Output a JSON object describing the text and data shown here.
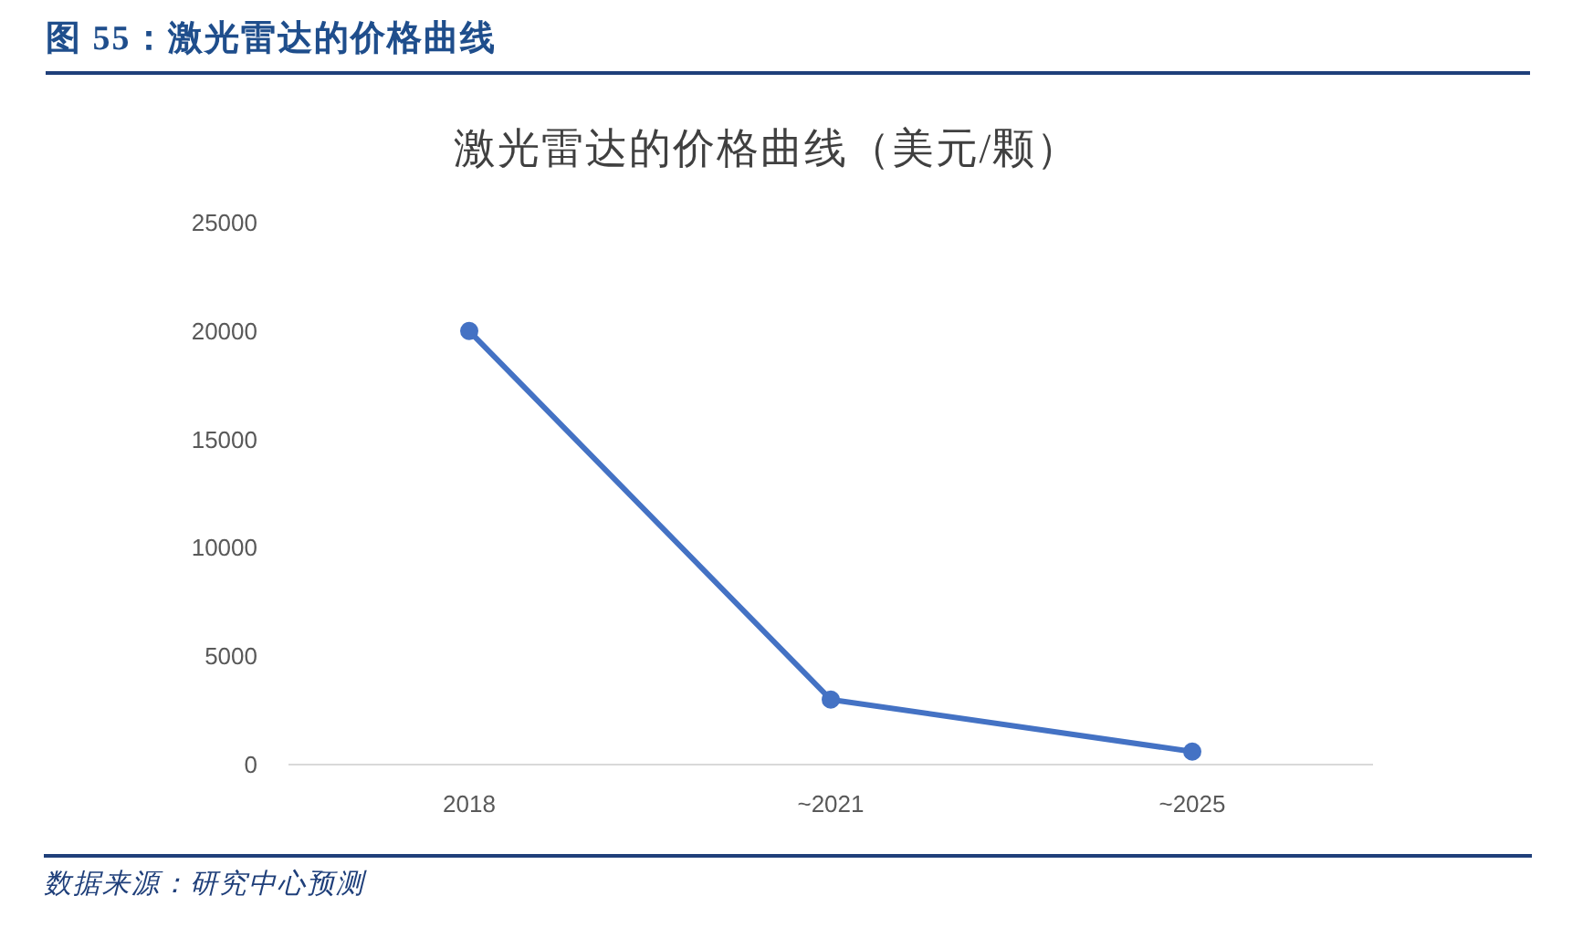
{
  "chart_data": {
    "type": "line",
    "title": "图 55：激光雷达的价格曲线",
    "subtitle": "激光雷达的价格曲线（美元/颗）",
    "categories": [
      "2018",
      "~2021",
      "~2025"
    ],
    "series": [
      {
        "color": "#4472c4",
        "values": [
          20000,
          3000,
          600
        ]
      }
    ],
    "ylim": [
      0,
      25000
    ],
    "yticks": [
      0,
      5000,
      10000,
      15000,
      20000,
      25000
    ],
    "marker": "circle",
    "line_style": "solid",
    "annotations": [
      "数据来源：研究中心预测"
    ]
  }
}
